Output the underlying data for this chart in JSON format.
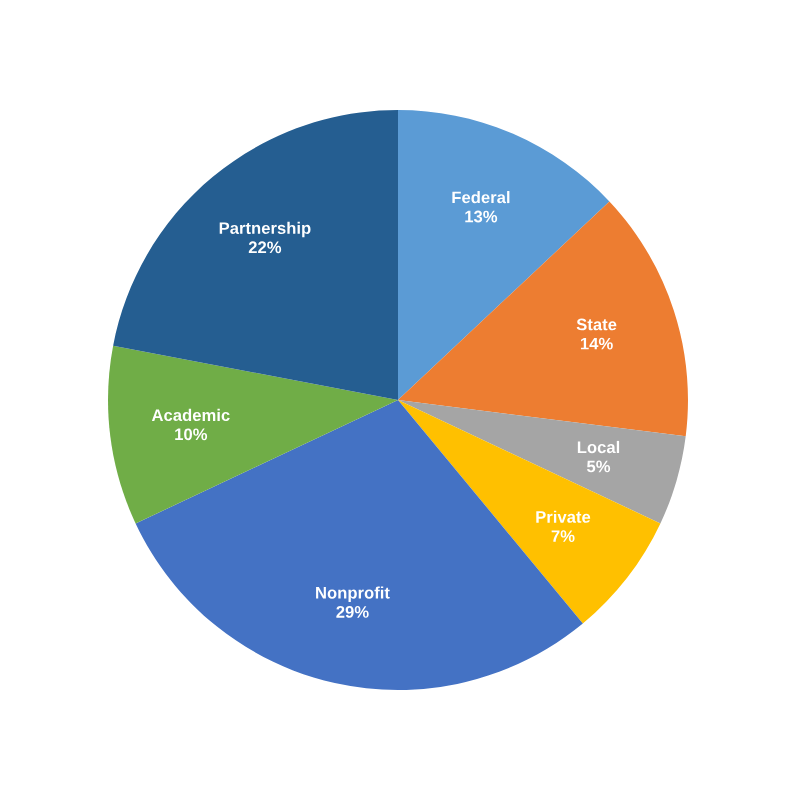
{
  "chart_data": {
    "type": "pie",
    "categories": [
      "Federal",
      "State",
      "Local",
      "Private",
      "Nonprofit",
      "Academic",
      "Partnership"
    ],
    "values": [
      13,
      14,
      5,
      7,
      29,
      10,
      22
    ],
    "value_labels": [
      "13%",
      "14%",
      "5%",
      "7%",
      "29%",
      "10%",
      "22%"
    ],
    "colors": [
      "#5b9bd5",
      "#ed7d31",
      "#a5a5a5",
      "#ffc000",
      "#4472c4",
      "#70ad47",
      "#255e91"
    ],
    "legend": false
  }
}
